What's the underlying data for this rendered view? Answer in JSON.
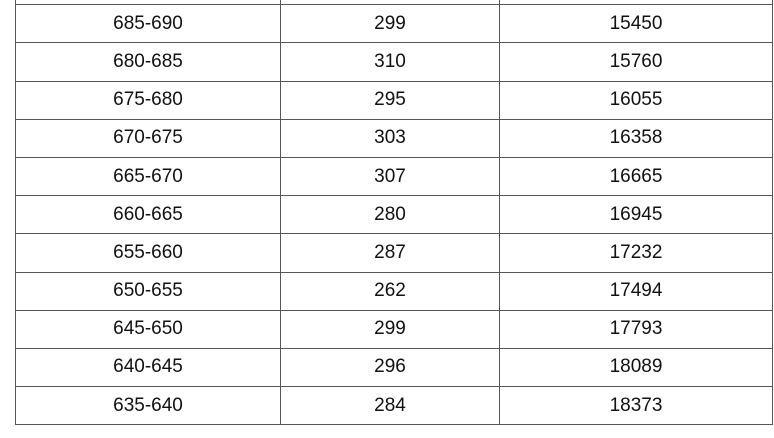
{
  "table": {
    "rows": [
      [
        "",
        "",
        ""
      ],
      [
        "685-690",
        "299",
        "15450"
      ],
      [
        "680-685",
        "310",
        "15760"
      ],
      [
        "675-680",
        "295",
        "16055"
      ],
      [
        "670-675",
        "303",
        "16358"
      ],
      [
        "665-670",
        "307",
        "16665"
      ],
      [
        "660-665",
        "280",
        "16945"
      ],
      [
        "655-660",
        "287",
        "17232"
      ],
      [
        "650-655",
        "262",
        "17494"
      ],
      [
        "645-650",
        "299",
        "17793"
      ],
      [
        "640-645",
        "296",
        "18089"
      ],
      [
        "635-640",
        "284",
        "18373"
      ]
    ]
  }
}
